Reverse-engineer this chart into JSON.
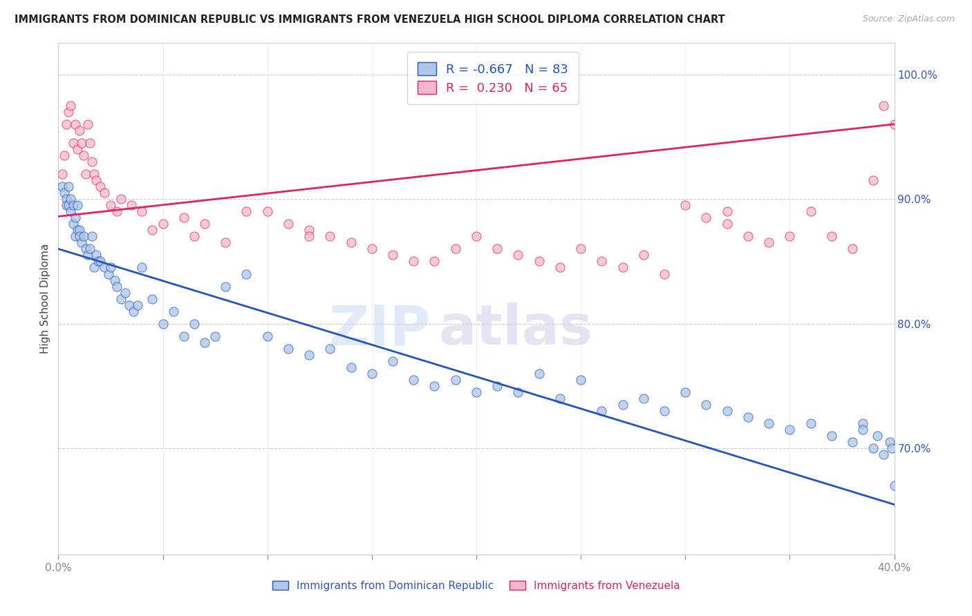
{
  "title": "IMMIGRANTS FROM DOMINICAN REPUBLIC VS IMMIGRANTS FROM VENEZUELA HIGH SCHOOL DIPLOMA CORRELATION CHART",
  "source": "Source: ZipAtlas.com",
  "ylabel": "High School Diploma",
  "legend_label_blue": "Immigrants from Dominican Republic",
  "legend_label_pink": "Immigrants from Venezuela",
  "blue_color": "#aec6e8",
  "blue_line_color": "#2255bb",
  "pink_color": "#f5b8c8",
  "pink_line_color": "#dd2266",
  "watermark_zip": "ZIP",
  "watermark_atlas": "atlas",
  "right_yticks": [
    0.7,
    0.8,
    0.9,
    1.0
  ],
  "legend_blue_r": "-0.667",
  "legend_blue_n": "83",
  "legend_pink_r": "0.230",
  "legend_pink_n": "65",
  "blue_line_x": [
    0.0,
    0.4
  ],
  "blue_line_y": [
    0.86,
    0.655
  ],
  "pink_line_x": [
    0.0,
    0.4
  ],
  "pink_line_y": [
    0.886,
    0.96
  ],
  "xmin": 0.0,
  "xmax": 0.4,
  "ymin": 0.615,
  "ymax": 1.025,
  "blue_scatter_x": [
    0.002,
    0.003,
    0.004,
    0.004,
    0.005,
    0.005,
    0.006,
    0.006,
    0.007,
    0.007,
    0.008,
    0.008,
    0.009,
    0.009,
    0.01,
    0.01,
    0.011,
    0.012,
    0.013,
    0.014,
    0.015,
    0.016,
    0.017,
    0.018,
    0.019,
    0.02,
    0.022,
    0.024,
    0.025,
    0.027,
    0.028,
    0.03,
    0.032,
    0.034,
    0.036,
    0.038,
    0.04,
    0.045,
    0.05,
    0.055,
    0.06,
    0.065,
    0.07,
    0.075,
    0.08,
    0.09,
    0.1,
    0.11,
    0.12,
    0.13,
    0.14,
    0.15,
    0.16,
    0.17,
    0.18,
    0.19,
    0.2,
    0.21,
    0.22,
    0.23,
    0.24,
    0.25,
    0.26,
    0.27,
    0.28,
    0.29,
    0.3,
    0.31,
    0.32,
    0.33,
    0.34,
    0.35,
    0.36,
    0.37,
    0.38,
    0.385,
    0.39,
    0.392,
    0.395,
    0.398,
    0.399,
    0.4,
    0.385
  ],
  "blue_scatter_y": [
    0.91,
    0.905,
    0.9,
    0.895,
    0.895,
    0.91,
    0.9,
    0.89,
    0.895,
    0.88,
    0.885,
    0.87,
    0.875,
    0.895,
    0.875,
    0.87,
    0.865,
    0.87,
    0.86,
    0.855,
    0.86,
    0.87,
    0.845,
    0.855,
    0.85,
    0.85,
    0.845,
    0.84,
    0.845,
    0.835,
    0.83,
    0.82,
    0.825,
    0.815,
    0.81,
    0.815,
    0.845,
    0.82,
    0.8,
    0.81,
    0.79,
    0.8,
    0.785,
    0.79,
    0.83,
    0.84,
    0.79,
    0.78,
    0.775,
    0.78,
    0.765,
    0.76,
    0.77,
    0.755,
    0.75,
    0.755,
    0.745,
    0.75,
    0.745,
    0.76,
    0.74,
    0.755,
    0.73,
    0.735,
    0.74,
    0.73,
    0.745,
    0.735,
    0.73,
    0.725,
    0.72,
    0.715,
    0.72,
    0.71,
    0.705,
    0.72,
    0.7,
    0.71,
    0.695,
    0.705,
    0.7,
    0.67,
    0.715
  ],
  "pink_scatter_x": [
    0.002,
    0.003,
    0.004,
    0.005,
    0.006,
    0.007,
    0.008,
    0.009,
    0.01,
    0.011,
    0.012,
    0.013,
    0.014,
    0.015,
    0.016,
    0.017,
    0.018,
    0.02,
    0.022,
    0.025,
    0.028,
    0.03,
    0.035,
    0.04,
    0.045,
    0.05,
    0.06,
    0.07,
    0.08,
    0.09,
    0.1,
    0.11,
    0.12,
    0.13,
    0.14,
    0.15,
    0.16,
    0.17,
    0.18,
    0.19,
    0.2,
    0.21,
    0.22,
    0.23,
    0.24,
    0.25,
    0.26,
    0.27,
    0.28,
    0.29,
    0.3,
    0.31,
    0.32,
    0.33,
    0.34,
    0.35,
    0.36,
    0.37,
    0.38,
    0.39,
    0.395,
    0.4,
    0.065,
    0.12,
    0.32
  ],
  "pink_scatter_y": [
    0.92,
    0.935,
    0.96,
    0.97,
    0.975,
    0.945,
    0.96,
    0.94,
    0.955,
    0.945,
    0.935,
    0.92,
    0.96,
    0.945,
    0.93,
    0.92,
    0.915,
    0.91,
    0.905,
    0.895,
    0.89,
    0.9,
    0.895,
    0.89,
    0.875,
    0.88,
    0.885,
    0.88,
    0.865,
    0.89,
    0.89,
    0.88,
    0.875,
    0.87,
    0.865,
    0.86,
    0.855,
    0.85,
    0.85,
    0.86,
    0.87,
    0.86,
    0.855,
    0.85,
    0.845,
    0.86,
    0.85,
    0.845,
    0.855,
    0.84,
    0.895,
    0.885,
    0.88,
    0.87,
    0.865,
    0.87,
    0.89,
    0.87,
    0.86,
    0.915,
    0.975,
    0.96,
    0.87,
    0.87,
    0.89
  ]
}
